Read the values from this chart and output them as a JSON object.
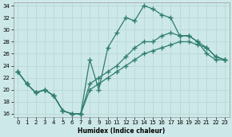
{
  "title": "",
  "xlabel": "Humidex (Indice chaleur)",
  "bg_color": "#cde8e8",
  "grid_color": "#b8d8d8",
  "line_color": "#2e7d6e",
  "hours": [
    0,
    1,
    2,
    3,
    4,
    5,
    6,
    7,
    8,
    9,
    10,
    11,
    12,
    13,
    14,
    15,
    16,
    17,
    18,
    19,
    20,
    21,
    22,
    23
  ],
  "series_main": [
    23,
    21,
    19.5,
    20,
    19,
    16.5,
    16,
    16,
    25,
    20,
    27,
    29.5,
    32,
    31.5,
    34,
    33.5,
    32.5,
    32,
    29,
    29,
    28,
    26,
    25,
    25
  ],
  "series_low": [
    23,
    21,
    19.5,
    20,
    19,
    16.5,
    16,
    16,
    20,
    21,
    22,
    23,
    24,
    25,
    26,
    26.5,
    27,
    27.5,
    28,
    28,
    27.5,
    27,
    25.5,
    25
  ],
  "series_mid": [
    23,
    21,
    19.5,
    20,
    19,
    16.5,
    16,
    16,
    21,
    22,
    23,
    24,
    25.5,
    27,
    28,
    28,
    29,
    29.5,
    29,
    29,
    28,
    27,
    25.5,
    25
  ],
  "xlim": [
    -0.5,
    23.5
  ],
  "ylim": [
    15.5,
    34.5
  ],
  "yticks": [
    16,
    18,
    20,
    22,
    24,
    26,
    28,
    30,
    32,
    34
  ],
  "xticks": [
    0,
    1,
    2,
    3,
    4,
    5,
    6,
    7,
    8,
    9,
    10,
    11,
    12,
    13,
    14,
    15,
    16,
    17,
    18,
    19,
    20,
    21,
    22,
    23
  ],
  "marker": "+",
  "markersize": 4,
  "linewidth": 0.9
}
